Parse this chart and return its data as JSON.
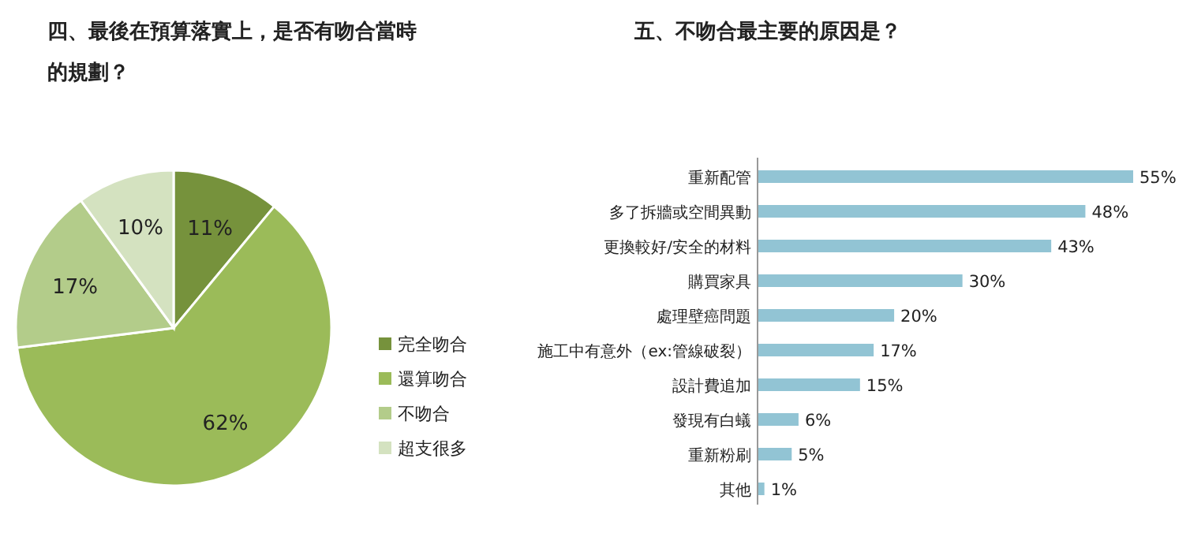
{
  "chart_data": [
    {
      "type": "pie",
      "title": "四、最後在預算落實上，是否有吻合當時的規劃？",
      "categories": [
        "完全吻合",
        "還算吻合",
        "不吻合",
        "超支很多"
      ],
      "values": [
        11,
        62,
        17,
        10
      ],
      "value_labels": [
        "11%",
        "62%",
        "17%",
        "10%"
      ],
      "colors": [
        "#76923c",
        "#9bbb59",
        "#b3cc8a",
        "#d4e2c0"
      ],
      "legend": "right"
    },
    {
      "type": "bar",
      "orientation": "horizontal",
      "title": "五、不吻合最主要的原因是？",
      "categories": [
        "重新配管",
        "多了拆牆或空間異動",
        "更換較好/安全的材料",
        "購買家具",
        "處理壁癌問題",
        "施工中有意外（ex:管線破裂）",
        "設計費追加",
        "發現有白蟻",
        "重新粉刷",
        "其他"
      ],
      "values": [
        55,
        48,
        43,
        30,
        20,
        17,
        15,
        6,
        5,
        1
      ],
      "value_labels": [
        "55%",
        "48%",
        "43%",
        "30%",
        "20%",
        "17%",
        "15%",
        "6%",
        "5%",
        "1%"
      ],
      "color": "#92c4d4"
    }
  ]
}
